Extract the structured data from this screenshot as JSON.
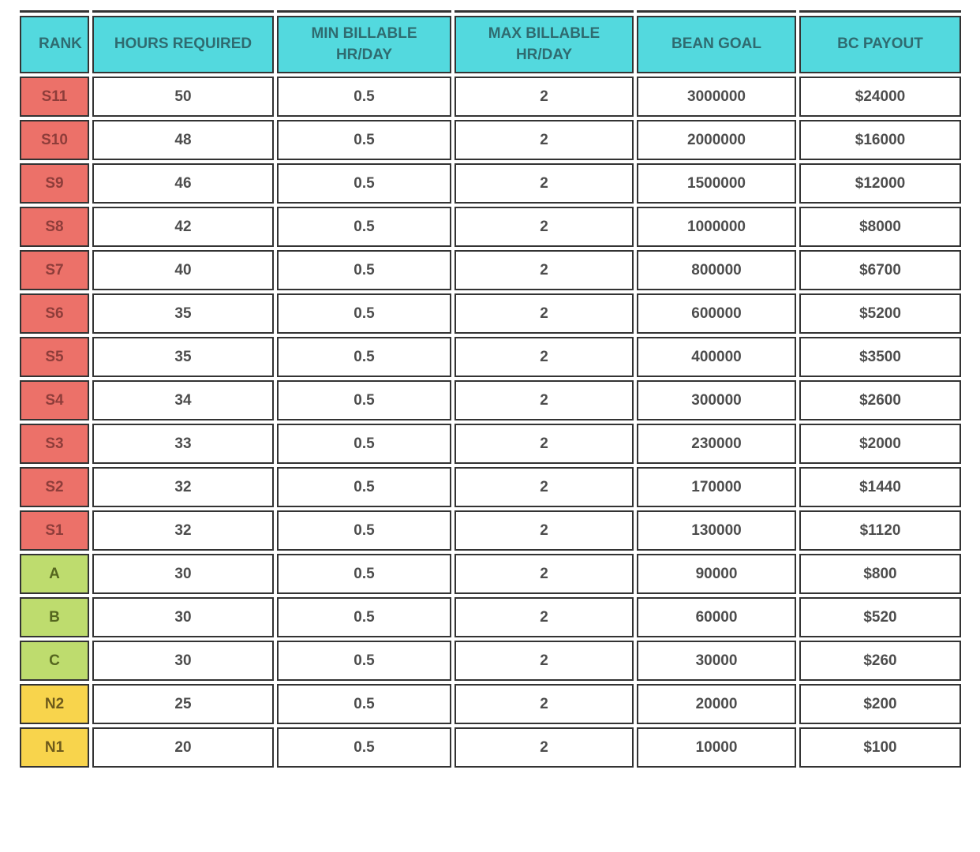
{
  "chart_data": {
    "type": "table",
    "columns": [
      "RANK",
      "HOURS REQUIRED",
      "MIN BILLABLE HR/DAY",
      "MAX BILLABLE HR/DAY",
      "BEAN GOAL",
      "BC PAYOUT"
    ],
    "rows": [
      {
        "rank": "S11",
        "tier": "red",
        "hours_required": "50",
        "min_billable_hr_day": "0.5",
        "max_billable_hr_day": "2",
        "bean_goal": "3000000",
        "bc_payout": "$24000"
      },
      {
        "rank": "S10",
        "tier": "red",
        "hours_required": "48",
        "min_billable_hr_day": "0.5",
        "max_billable_hr_day": "2",
        "bean_goal": "2000000",
        "bc_payout": "$16000"
      },
      {
        "rank": "S9",
        "tier": "red",
        "hours_required": "46",
        "min_billable_hr_day": "0.5",
        "max_billable_hr_day": "2",
        "bean_goal": "1500000",
        "bc_payout": "$12000"
      },
      {
        "rank": "S8",
        "tier": "red",
        "hours_required": "42",
        "min_billable_hr_day": "0.5",
        "max_billable_hr_day": "2",
        "bean_goal": "1000000",
        "bc_payout": "$8000"
      },
      {
        "rank": "S7",
        "tier": "red",
        "hours_required": "40",
        "min_billable_hr_day": "0.5",
        "max_billable_hr_day": "2",
        "bean_goal": "800000",
        "bc_payout": "$6700"
      },
      {
        "rank": "S6",
        "tier": "red",
        "hours_required": "35",
        "min_billable_hr_day": "0.5",
        "max_billable_hr_day": "2",
        "bean_goal": "600000",
        "bc_payout": "$5200"
      },
      {
        "rank": "S5",
        "tier": "red",
        "hours_required": "35",
        "min_billable_hr_day": "0.5",
        "max_billable_hr_day": "2",
        "bean_goal": "400000",
        "bc_payout": "$3500"
      },
      {
        "rank": "S4",
        "tier": "red",
        "hours_required": "34",
        "min_billable_hr_day": "0.5",
        "max_billable_hr_day": "2",
        "bean_goal": "300000",
        "bc_payout": "$2600"
      },
      {
        "rank": "S3",
        "tier": "red",
        "hours_required": "33",
        "min_billable_hr_day": "0.5",
        "max_billable_hr_day": "2",
        "bean_goal": "230000",
        "bc_payout": "$2000"
      },
      {
        "rank": "S2",
        "tier": "red",
        "hours_required": "32",
        "min_billable_hr_day": "0.5",
        "max_billable_hr_day": "2",
        "bean_goal": "170000",
        "bc_payout": "$1440"
      },
      {
        "rank": "S1",
        "tier": "red",
        "hours_required": "32",
        "min_billable_hr_day": "0.5",
        "max_billable_hr_day": "2",
        "bean_goal": "130000",
        "bc_payout": "$1120"
      },
      {
        "rank": "A",
        "tier": "green",
        "hours_required": "30",
        "min_billable_hr_day": "0.5",
        "max_billable_hr_day": "2",
        "bean_goal": "90000",
        "bc_payout": "$800"
      },
      {
        "rank": "B",
        "tier": "green",
        "hours_required": "30",
        "min_billable_hr_day": "0.5",
        "max_billable_hr_day": "2",
        "bean_goal": "60000",
        "bc_payout": "$520"
      },
      {
        "rank": "C",
        "tier": "green",
        "hours_required": "30",
        "min_billable_hr_day": "0.5",
        "max_billable_hr_day": "2",
        "bean_goal": "30000",
        "bc_payout": "$260"
      },
      {
        "rank": "N2",
        "tier": "yellow",
        "hours_required": "25",
        "min_billable_hr_day": "0.5",
        "max_billable_hr_day": "2",
        "bean_goal": "20000",
        "bc_payout": "$200"
      },
      {
        "rank": "N1",
        "tier": "yellow",
        "hours_required": "20",
        "min_billable_hr_day": "0.5",
        "max_billable_hr_day": "2",
        "bean_goal": "10000",
        "bc_payout": "$100"
      }
    ]
  },
  "colors": {
    "header_bg": "#53d9de",
    "header_text": "#2f6b70",
    "border": "#333333",
    "cell_text": "#4d4d4d",
    "tier_red_bg": "#ec7169",
    "tier_red_text": "#8e3d3a",
    "tier_green_bg": "#bedc6e",
    "tier_green_text": "#55661f",
    "tier_yellow_bg": "#f8d44c",
    "tier_yellow_text": "#6e5a1b"
  }
}
